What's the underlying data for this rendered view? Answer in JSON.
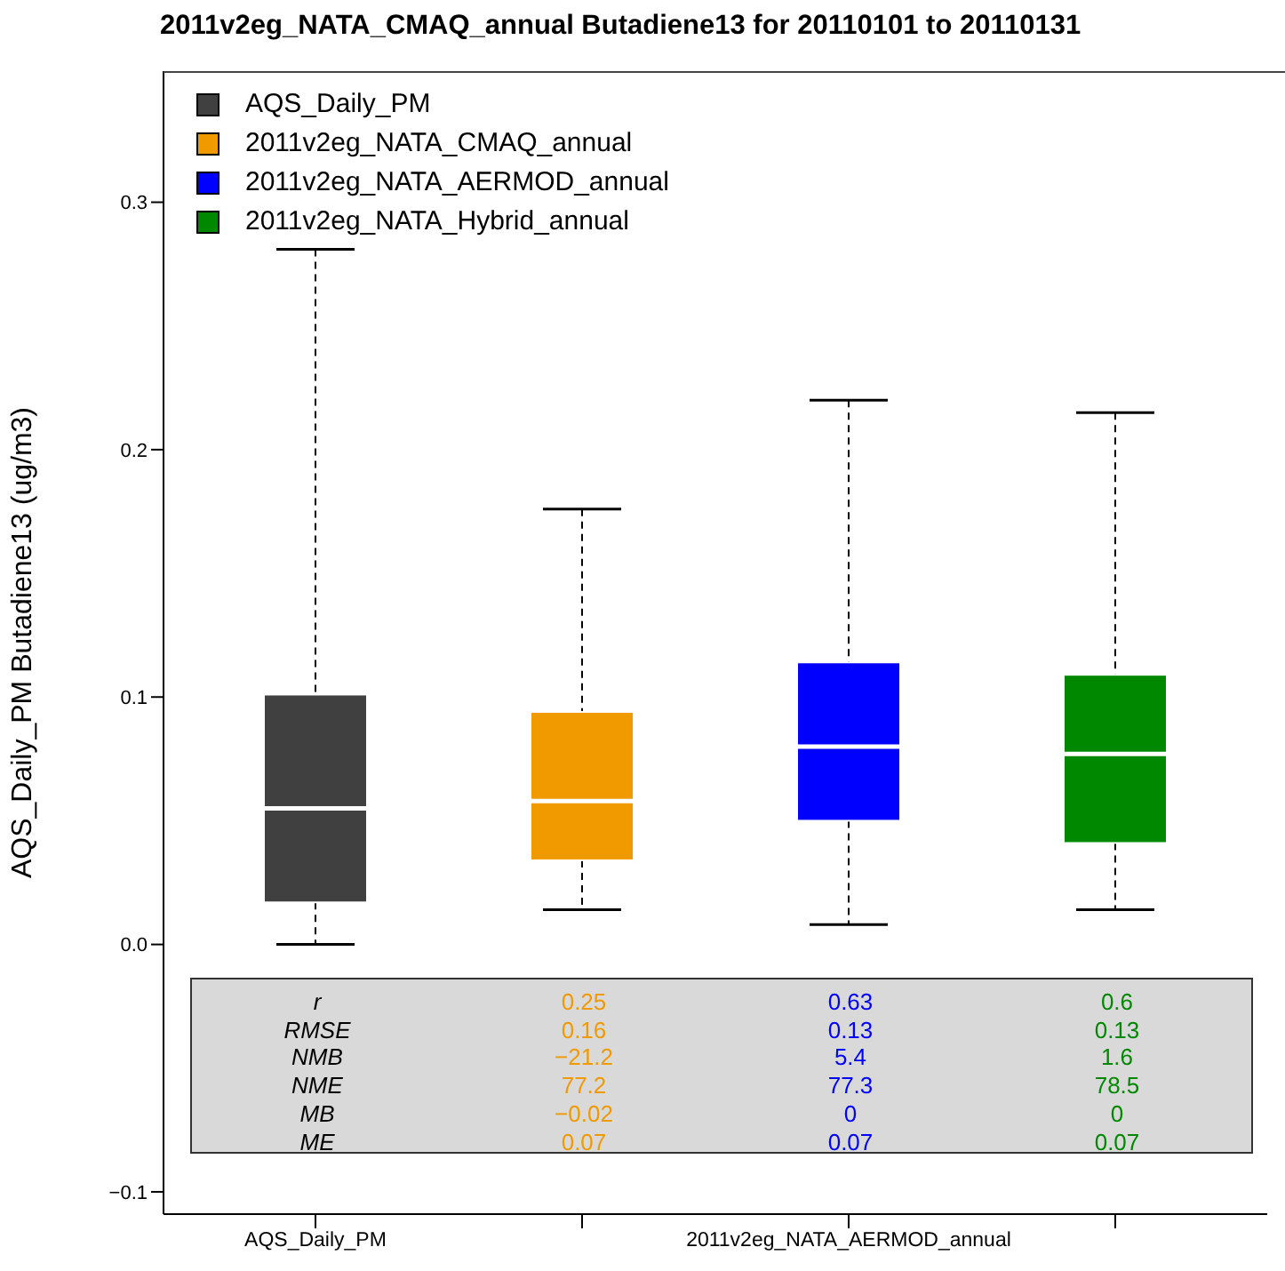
{
  "chart_data": {
    "type": "box",
    "title": "2011v2eg_NATA_CMAQ_annual Butadiene13 for 20110101 to 20110131",
    "ylabel": "AQS_Daily_PM Butadiene13 (ug/m3)",
    "categories": [
      "AQS_Daily_PM",
      null,
      "2011v2eg_NATA_AERMOD_annual",
      null
    ],
    "series": [
      {
        "name": "AQS_Daily_PM",
        "color": "#404040",
        "boxes": [
          {
            "low": 0.0,
            "q1": 0.017,
            "median": 0.055,
            "q3": 0.101,
            "high": 0.281
          },
          null,
          null,
          null
        ]
      },
      {
        "name": "2011v2eg_NATA_CMAQ_annual",
        "color": "#f09a00",
        "boxes": [
          null,
          {
            "low": 0.014,
            "q1": 0.034,
            "median": 0.058,
            "q3": 0.094,
            "high": 0.176
          },
          null,
          null
        ]
      },
      {
        "name": "2011v2eg_NATA_AERMOD_annual",
        "color": "#0000ff",
        "boxes": [
          null,
          null,
          {
            "low": 0.008,
            "q1": 0.05,
            "median": 0.08,
            "q3": 0.114,
            "high": 0.22
          },
          null
        ]
      },
      {
        "name": "2011v2eg_NATA_Hybrid_annual",
        "color": "#008800",
        "boxes": [
          null,
          null,
          null,
          {
            "low": 0.014,
            "q1": 0.041,
            "median": 0.077,
            "q3": 0.109,
            "high": 0.215
          }
        ]
      }
    ],
    "ylim": [
      -0.109,
      0.353
    ],
    "yticks": [
      {
        "value": -0.1,
        "label": "−0.1"
      },
      {
        "value": 0,
        "label": "0.0"
      },
      0.1,
      0.2,
      0.3
    ],
    "legend": "top left",
    "annotations": [
      "r",
      "0.25",
      "0.63",
      "0.6",
      "RMSE",
      "0.16",
      "0.13",
      "0.13",
      "NMB",
      "−21.2",
      "5.4",
      "1.6",
      "NME",
      "77.2",
      "77.3",
      "78.5",
      "MB",
      "−0.02",
      "0",
      "0",
      "ME",
      "0.07",
      "0.07",
      "0.07"
    ]
  }
}
